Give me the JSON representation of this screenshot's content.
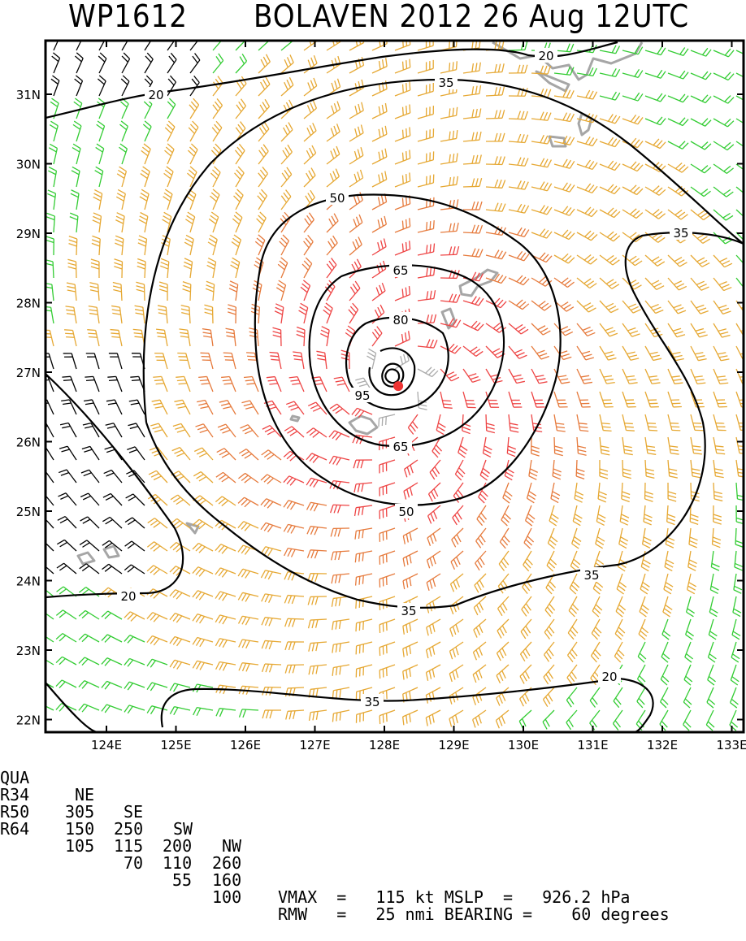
{
  "title": {
    "storm_id": "WP1612",
    "storm_info": "BOLAVEN 2012 26 Aug 12UTC"
  },
  "map": {
    "lat_labels": [
      "31N",
      "30N",
      "29N",
      "28N",
      "27N",
      "26N",
      "25N",
      "24N",
      "23N",
      "22N"
    ],
    "lon_labels": [
      "124E",
      "125E",
      "126E",
      "127E",
      "128E",
      "129E",
      "130E",
      "131E",
      "132E",
      "133E"
    ],
    "center": {
      "lon": 128.2,
      "lat": 26.8
    },
    "contour_labels": [
      "20",
      "35",
      "50",
      "65",
      "80",
      "95",
      "65",
      "50",
      "35",
      "35",
      "35",
      "20",
      "35"
    ],
    "colors": {
      "contour": "#000000",
      "land": "#a6a6a6",
      "barb_low": "#000000",
      "barb_gale": "#33cc33",
      "barb_storm": "#e6a833",
      "barb_50": "#e67a3c",
      "barb_64": "#ee4444",
      "barb_core": "#aaaaaa",
      "center_dot": "#ee3333"
    }
  },
  "stats": {
    "header": {
      "label": "QUA",
      "cols": [
        "NE",
        "SE",
        "SW",
        "NW"
      ]
    },
    "rows": [
      {
        "label": "R34",
        "values": [
          "305",
          "250",
          "200",
          "260"
        ]
      },
      {
        "label": "R50",
        "values": [
          "150",
          "115",
          "110",
          "160"
        ]
      },
      {
        "label": "R64",
        "values": [
          "105",
          "70",
          "55",
          "100"
        ]
      }
    ],
    "vmax": "VMAX  =   115 kt MSLP  =   926.2 hPa",
    "rmw": "RMW   =   25 nmi BEARING =    60 degrees"
  }
}
